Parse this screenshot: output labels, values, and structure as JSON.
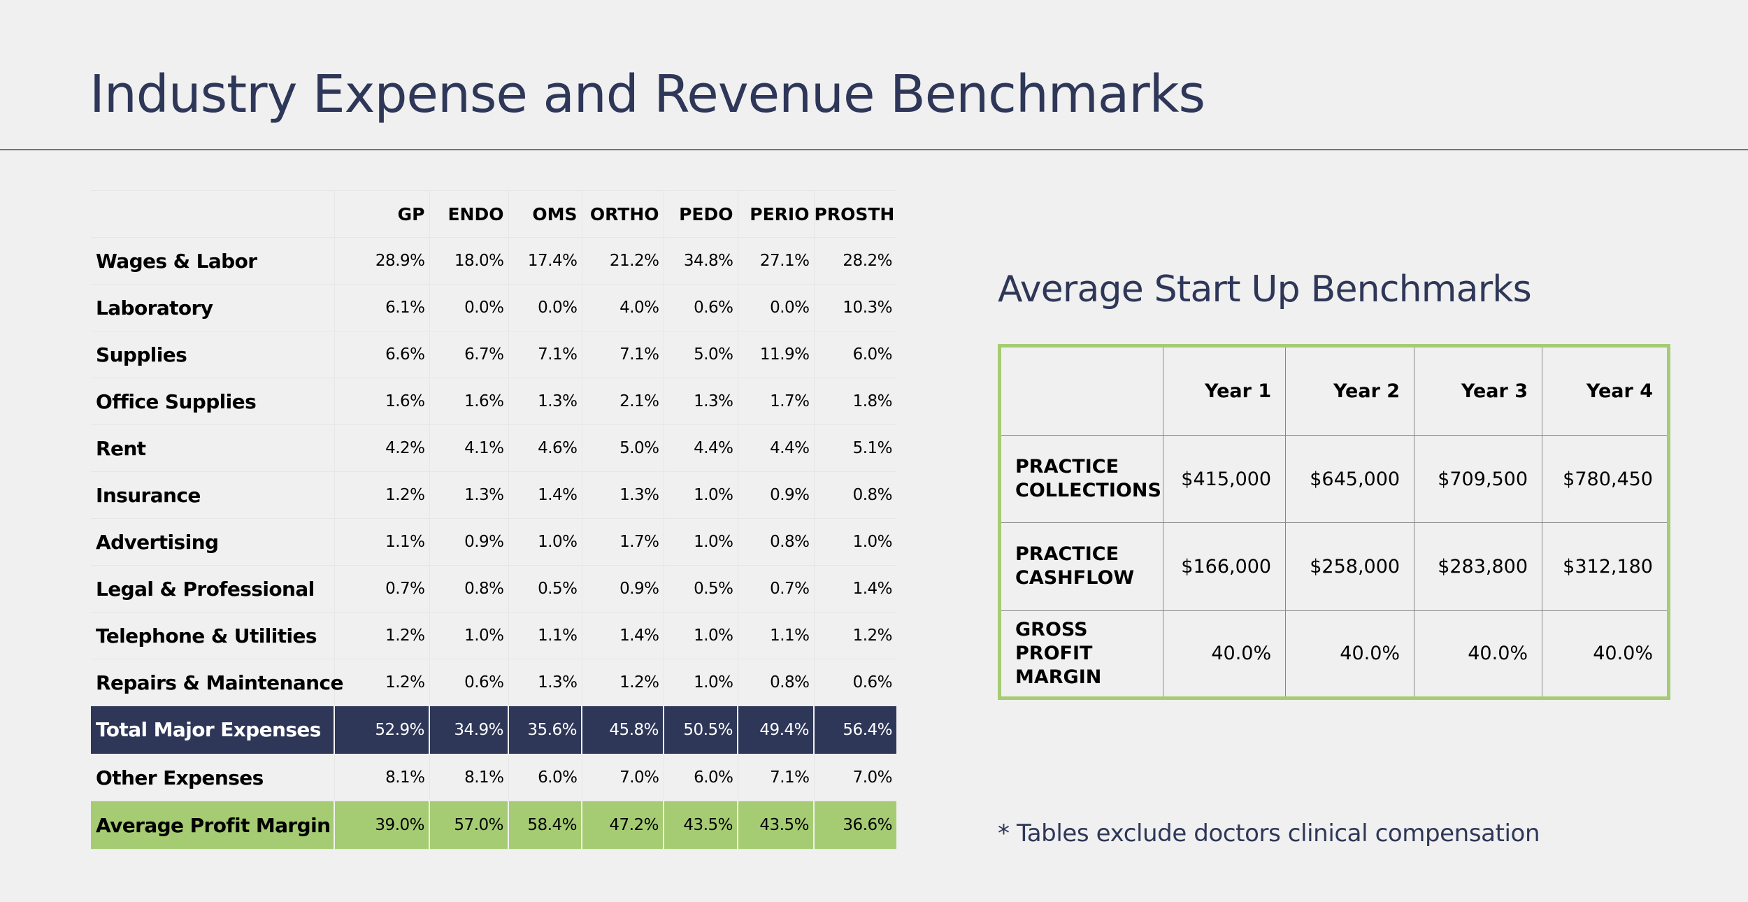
{
  "page": {
    "title": "Industry Expense and Revenue Benchmarks",
    "footnote": "* Tables exclude doctors clinical compensation"
  },
  "expense_table": {
    "columns": [
      "GP",
      "ENDO",
      "OMS",
      "ORTHO",
      "PEDO",
      "PERIO",
      "PROSTH"
    ],
    "rows": [
      {
        "label": "Wages &  Labor",
        "values": [
          "28.9%",
          "18.0%",
          "17.4%",
          "21.2%",
          "34.8%",
          "27.1%",
          "28.2%"
        ]
      },
      {
        "label": "Laboratory",
        "values": [
          "6.1%",
          "0.0%",
          "0.0%",
          "4.0%",
          "0.6%",
          "0.0%",
          "10.3%"
        ]
      },
      {
        "label": "Supplies",
        "values": [
          "6.6%",
          "6.7%",
          "7.1%",
          "7.1%",
          "5.0%",
          "11.9%",
          "6.0%"
        ]
      },
      {
        "label": "Office Supplies",
        "values": [
          "1.6%",
          "1.6%",
          "1.3%",
          "2.1%",
          "1.3%",
          "1.7%",
          "1.8%"
        ]
      },
      {
        "label": "Rent",
        "values": [
          "4.2%",
          "4.1%",
          "4.6%",
          "5.0%",
          "4.4%",
          "4.4%",
          "5.1%"
        ]
      },
      {
        "label": "Insurance",
        "values": [
          "1.2%",
          "1.3%",
          "1.4%",
          "1.3%",
          "1.0%",
          "0.9%",
          "0.8%"
        ]
      },
      {
        "label": "Advertising",
        "values": [
          "1.1%",
          "0.9%",
          "1.0%",
          "1.7%",
          "1.0%",
          "0.8%",
          "1.0%"
        ]
      },
      {
        "label": "Legal & Professional",
        "values": [
          "0.7%",
          "0.8%",
          "0.5%",
          "0.9%",
          "0.5%",
          "0.7%",
          "1.4%"
        ]
      },
      {
        "label": "Telephone & Utilities",
        "values": [
          "1.2%",
          "1.0%",
          "1.1%",
          "1.4%",
          "1.0%",
          "1.1%",
          "1.2%"
        ]
      },
      {
        "label": "Repairs & Maintenance",
        "values": [
          "1.2%",
          "0.6%",
          "1.3%",
          "1.2%",
          "1.0%",
          "0.8%",
          "0.6%"
        ]
      }
    ],
    "total_row": {
      "label": "Total Major Expenses",
      "values": [
        "52.9%",
        "34.9%",
        "35.6%",
        "45.8%",
        "50.5%",
        "49.4%",
        "56.4%"
      ]
    },
    "other_row": {
      "label": "Other Expenses",
      "values": [
        "8.1%",
        "8.1%",
        "6.0%",
        "7.0%",
        "6.0%",
        "7.1%",
        "7.0%"
      ]
    },
    "margin_row": {
      "label": "Average Profit Margin",
      "values": [
        "39.0%",
        "57.0%",
        "58.4%",
        "47.2%",
        "43.5%",
        "43.5%",
        "36.6%"
      ]
    }
  },
  "startup": {
    "title": "Average Start Up Benchmarks",
    "columns": [
      "Year 1",
      "Year 2",
      "Year 3",
      "Year 4"
    ],
    "rows": [
      {
        "label_line1": "PRACTICE",
        "label_line2": "COLLECTIONS",
        "values": [
          "$415,000",
          "$645,000",
          "$709,500",
          "$780,450"
        ]
      },
      {
        "label_line1": "PRACTICE",
        "label_line2": "CASHFLOW",
        "values": [
          "$166,000",
          "$258,000",
          "$283,800",
          "$312,180"
        ]
      },
      {
        "label_line1": "GROSS PROFIT",
        "label_line2": "MARGIN",
        "values": [
          "40.0%",
          "40.0%",
          "40.0%",
          "40.0%"
        ]
      }
    ]
  },
  "colors": {
    "navy": "#2e3758",
    "green": "#a6cc73",
    "background": "#f0f0f0"
  }
}
